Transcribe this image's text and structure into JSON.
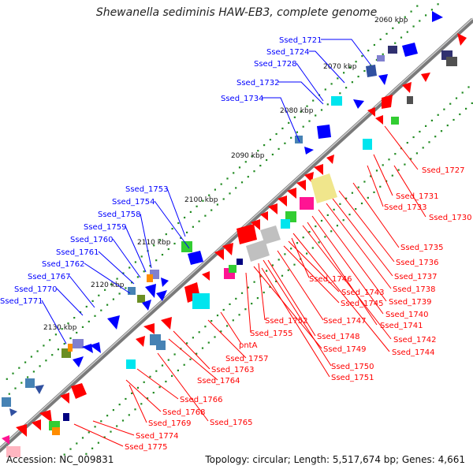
{
  "title": "Shewanella sediminis HAW-EB3, complete genome",
  "footer": {
    "accession": "Accession: NC_009831",
    "summary": "Topology: circular; Length: 5,517,674 bp; Genes: 4,661"
  },
  "colors": {
    "backbone": "#7f7f7f",
    "forward_strand": "#0000ff",
    "reverse_strand": "#ff0000",
    "blue_label": "#0000ff",
    "red_label": "#ff0000",
    "tick_dot": "#228b22"
  },
  "scale_labels": [
    "2060 kbp",
    "2070 kbp",
    "2080 kbp",
    "2090 kbp",
    "2100 kbp",
    "2110 kbp",
    "2120 kbp",
    "2130 kbp"
  ],
  "blue_genes": [
    "Ssed_1721",
    "Ssed_1724",
    "Ssed_1728",
    "Ssed_1732",
    "Ssed_1734",
    "Ssed_1753",
    "Ssed_1754",
    "Ssed_1758",
    "Ssed_1759",
    "Ssed_1760",
    "Ssed_1761",
    "Ssed_1762",
    "Ssed_1767",
    "Ssed_1770",
    "Ssed_1771"
  ],
  "red_genes": [
    "Ssed_1727",
    "Ssed_1731",
    "Ssed_1733",
    "Ssed_1730",
    "Ssed_1735",
    "Ssed_1736",
    "Ssed_1737",
    "Ssed_1738",
    "Ssed_1739",
    "Ssed_1740",
    "Ssed_1741",
    "Ssed_1742",
    "Ssed_1744",
    "Ssed_1746",
    "Ssed_1743",
    "Ssed_1745",
    "Ssed_1747",
    "Ssed_1752",
    "Ssed_1748",
    "Ssed_1755",
    "Ssed_1749",
    "pntA",
    "Ssed_1750",
    "Ssed_1757",
    "Ssed_1751",
    "Ssed_1763",
    "Ssed_1764",
    "Ssed_1766",
    "Ssed_1768",
    "Ssed_1765",
    "Ssed_1769",
    "Ssed_1774",
    "Ssed_1775"
  ]
}
